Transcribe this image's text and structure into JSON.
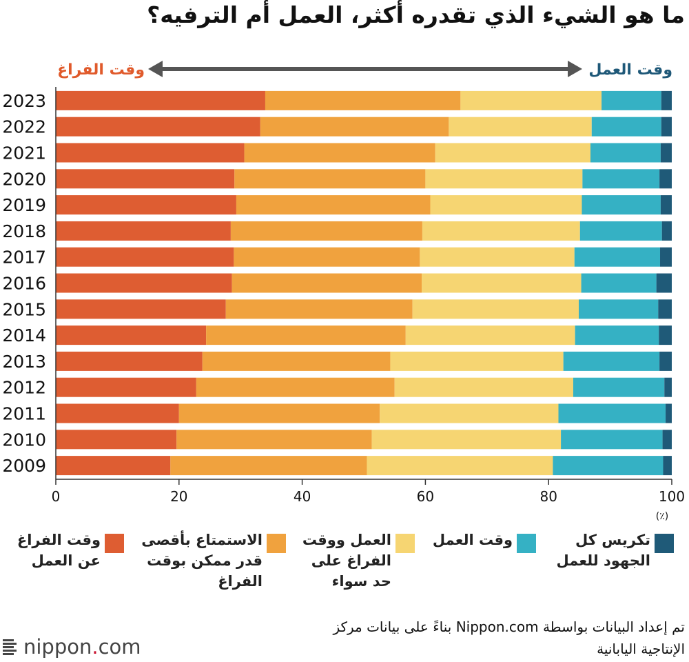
{
  "title": "ما هو الشيء الذي تقدره أكثر، العمل أم الترفيه؟",
  "arrow": {
    "left_label": "وقت الفراغ",
    "right_label": "وقت العمل",
    "left_color": "#e05a2b",
    "right_color": "#1e5878"
  },
  "chart_data": {
    "type": "bar",
    "orientation": "horizontal",
    "stacked": true,
    "categories": [
      "2023",
      "2022",
      "2021",
      "2020",
      "2019",
      "2018",
      "2017",
      "2016",
      "2015",
      "2014",
      "2013",
      "2012",
      "2011",
      "2010",
      "2009"
    ],
    "series": [
      {
        "name": "وقت الفراغ عن العمل",
        "color": "#de5d32",
        "values": [
          34.0,
          33.2,
          30.6,
          29.0,
          29.3,
          28.4,
          28.9,
          28.6,
          27.6,
          24.4,
          23.8,
          22.8,
          20.0,
          19.6,
          18.6
        ]
      },
      {
        "name": "الاستمتاع بأقصى قدر ممكن بوقت الفراغ",
        "color": "#f0a23e",
        "values": [
          31.7,
          30.6,
          31.0,
          31.0,
          31.5,
          31.1,
          30.2,
          30.8,
          30.3,
          32.4,
          30.5,
          32.2,
          32.6,
          31.7,
          31.9
        ]
      },
      {
        "name": "العمل ووقت الفراغ على حد سواء",
        "color": "#f6d572",
        "values": [
          22.9,
          23.2,
          25.2,
          25.5,
          24.6,
          25.6,
          25.1,
          25.9,
          27.0,
          27.5,
          28.1,
          29.0,
          29.0,
          30.7,
          30.2
        ]
      },
      {
        "name": "وقت العمل",
        "color": "#35b1c4",
        "values": [
          9.7,
          11.3,
          11.4,
          12.5,
          12.8,
          13.3,
          13.9,
          12.2,
          12.9,
          13.6,
          15.6,
          14.8,
          17.4,
          16.5,
          17.9
        ]
      },
      {
        "name": "تكريس كل الجهود للعمل",
        "color": "#1f5a78",
        "values": [
          1.7,
          1.7,
          1.8,
          2.0,
          1.8,
          1.6,
          1.9,
          2.5,
          2.2,
          2.1,
          2.0,
          1.2,
          1.0,
          1.5,
          1.4
        ]
      }
    ],
    "xlim": [
      0,
      100
    ],
    "xticks": [
      0,
      20,
      40,
      60,
      80,
      100
    ],
    "xunit": "(٪)"
  },
  "legend": [
    {
      "lines": [
        "وقت الفراغ",
        "عن العمل"
      ],
      "color": "#de5d32"
    },
    {
      "lines": [
        "الاستمتاع بأقصى",
        "قدر ممكن بوقت",
        "الفراغ"
      ],
      "color": "#f0a23e"
    },
    {
      "lines": [
        "العمل ووقت",
        "الفراغ على",
        "حد سواء"
      ],
      "color": "#f6d572"
    },
    {
      "lines": [
        "وقت العمل"
      ],
      "color": "#35b1c4"
    },
    {
      "lines": [
        "تكريس كل",
        "الجهود للعمل"
      ],
      "color": "#1f5a78"
    }
  ],
  "source": {
    "line1": "تم إعداد البيانات بواسطة Nippon.com بناءً على بيانات مركز",
    "line2": "الإنتاجية اليابانية"
  },
  "logo": {
    "name": "nippon",
    "dot": ".",
    "suffix": "com"
  }
}
